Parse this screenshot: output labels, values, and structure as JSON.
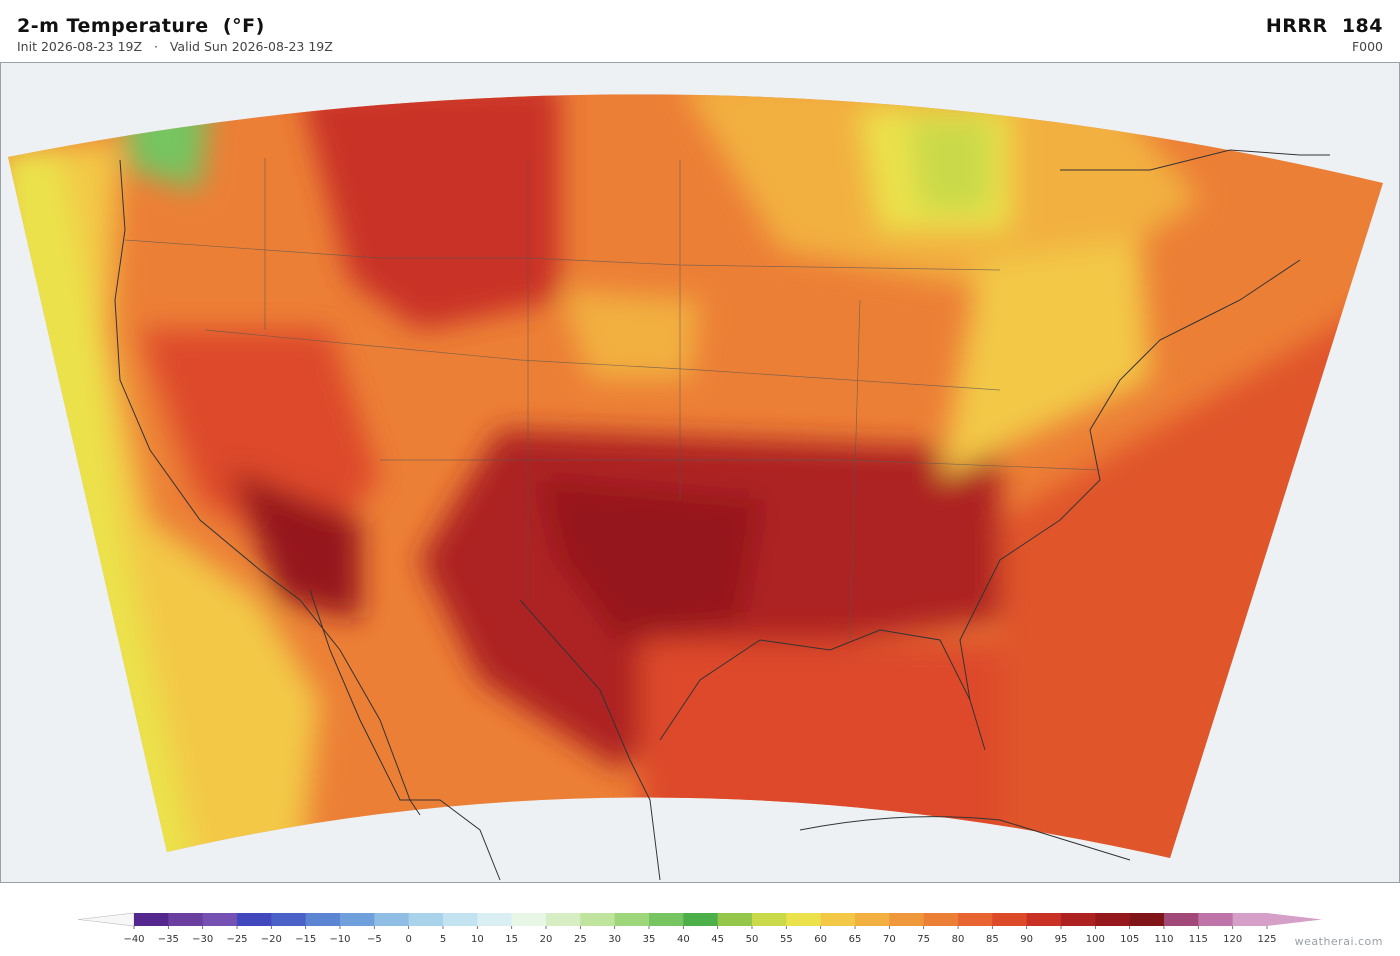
{
  "header": {
    "title": "2-m Temperature  (°F)",
    "subtitle": "Init 2026-08-23 19Z   ·   Valid Sun 2026-08-23 19Z",
    "model": "HRRR  184",
    "forecast_hour": "F000"
  },
  "colorbar": {
    "ticks": [
      {
        "value": -40,
        "label": "−40"
      },
      {
        "value": -35,
        "label": "−35"
      },
      {
        "value": -30,
        "label": "−30"
      },
      {
        "value": -25,
        "label": "−25"
      },
      {
        "value": -20,
        "label": "−20"
      },
      {
        "value": -15,
        "label": "−15"
      },
      {
        "value": -10,
        "label": "−10"
      },
      {
        "value": -5,
        "label": "−5"
      },
      0,
      5,
      10,
      15,
      20,
      25,
      30,
      35,
      40,
      45,
      50,
      55,
      60,
      65,
      70,
      75,
      80,
      85,
      90,
      95,
      100,
      105,
      110,
      115,
      120,
      125
    ],
    "colors": [
      "#54278f",
      "#6a3fa0",
      "#7451b2",
      "#4147bd",
      "#4a62c8",
      "#5b84d3",
      "#70a0db",
      "#8fbde3",
      "#a9d3ea",
      "#c2e3ef",
      "#d9eff3",
      "#e8f6e6",
      "#d7eec4",
      "#bfe49e",
      "#9ed67b",
      "#76c560",
      "#4daf4a",
      "#93c64a",
      "#c9d94a",
      "#ebe24b",
      "#f3c846",
      "#f2b040",
      "#ef973b",
      "#ec7f36",
      "#e86430",
      "#dd4a2a",
      "#c93125",
      "#ad2221",
      "#95191c",
      "#7f1518",
      "#a14a7a",
      "#be74a8",
      "#d59fc8"
    ],
    "under_color": "#f7f7f7",
    "over_color": "#d59fc8"
  },
  "watermark": "weatherai.com"
}
